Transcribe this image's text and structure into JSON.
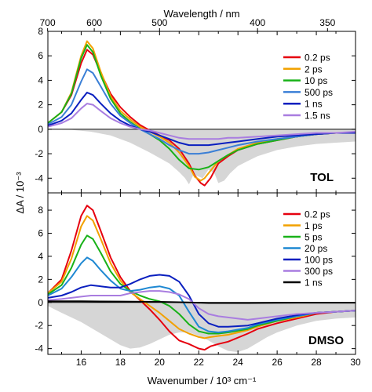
{
  "chart_data": {
    "type": "line",
    "top_axis": {
      "label": "Wavelength / nm",
      "ticks": [
        {
          "label": "700",
          "wavenumber": 14.286
        },
        {
          "label": "600",
          "wavenumber": 16.667
        },
        {
          "label": "500",
          "wavenumber": 20.0
        },
        {
          "label": "400",
          "wavenumber": 25.0
        },
        {
          "label": "350",
          "wavenumber": 28.571
        }
      ]
    },
    "xlabel": "Wavenumber / 10³ cm⁻¹",
    "ylabel": "ΔA / 10⁻³",
    "xlim": [
      14.3,
      30
    ],
    "xticks": [
      "16",
      "18",
      "20",
      "22",
      "24",
      "26",
      "28",
      "30"
    ],
    "panels": [
      {
        "label": "TOL",
        "ylim": [
          -5.2,
          8
        ],
        "yticks": [
          "8",
          "6",
          "4",
          "2",
          "0",
          "-2",
          "-4"
        ],
        "legend_position": "top-right",
        "series": [
          {
            "name": "0.2 ps",
            "color": "#e6000e",
            "x": [
              14.3,
              15.0,
              15.5,
              16.0,
              16.3,
              16.6,
              17.0,
              17.5,
              18.0,
              18.5,
              19.0,
              19.5,
              20.0,
              20.5,
              21.0,
              21.5,
              21.8,
              22.1,
              22.3,
              22.6,
              23.0,
              23.5,
              24.0,
              25.0,
              26.0,
              27.0,
              28.0,
              29.0,
              30.0
            ],
            "y": [
              0.5,
              1.4,
              2.8,
              5.4,
              6.5,
              6.1,
              4.6,
              2.9,
              1.8,
              1.0,
              0.35,
              -0.1,
              -0.5,
              -0.9,
              -1.6,
              -2.8,
              -3.8,
              -4.4,
              -4.6,
              -4.0,
              -2.8,
              -2.2,
              -1.7,
              -1.2,
              -0.9,
              -0.6,
              -0.4,
              -0.3,
              -0.3
            ]
          },
          {
            "name": "2 ps",
            "color": "#f2a100",
            "x": [
              14.3,
              15.0,
              15.5,
              16.0,
              16.3,
              16.6,
              17.0,
              17.5,
              18.0,
              18.5,
              19.0,
              19.5,
              20.0,
              20.5,
              21.0,
              21.5,
              21.8,
              22.1,
              22.3,
              22.6,
              23.0,
              23.5,
              24.0,
              25.0,
              26.0,
              27.0,
              28.0,
              29.0,
              30.0
            ],
            "y": [
              0.5,
              1.4,
              3.0,
              6.0,
              7.2,
              6.6,
              4.7,
              2.7,
              1.5,
              0.8,
              0.2,
              -0.2,
              -0.6,
              -1.1,
              -1.9,
              -3.0,
              -3.9,
              -4.2,
              -4.0,
              -3.4,
              -2.6,
              -2.1,
              -1.6,
              -1.1,
              -0.8,
              -0.6,
              -0.4,
              -0.3,
              -0.3
            ]
          },
          {
            "name": "10 ps",
            "color": "#19b219",
            "x": [
              14.3,
              15.0,
              15.5,
              16.0,
              16.3,
              16.6,
              17.0,
              17.5,
              18.0,
              18.5,
              19.0,
              19.5,
              20.0,
              20.5,
              21.0,
              21.5,
              22.0,
              22.5,
              23.0,
              23.5,
              24.0,
              25.0,
              26.0,
              27.0,
              28.0,
              29.0,
              30.0
            ],
            "y": [
              0.5,
              1.4,
              2.9,
              5.8,
              6.9,
              6.3,
              4.4,
              2.5,
              1.3,
              0.6,
              0.05,
              -0.4,
              -0.9,
              -1.6,
              -2.5,
              -3.2,
              -3.3,
              -3.1,
              -2.6,
              -2.1,
              -1.7,
              -1.2,
              -0.9,
              -0.6,
              -0.4,
              -0.3,
              -0.3
            ]
          },
          {
            "name": "500 ps",
            "color": "#3a7fd6",
            "x": [
              14.3,
              15.0,
              15.5,
              16.0,
              16.3,
              16.6,
              17.0,
              17.5,
              18.0,
              18.5,
              19.0,
              19.5,
              20.0,
              20.5,
              21.0,
              21.5,
              22.0,
              22.5,
              23.0,
              23.5,
              24.0,
              25.0,
              26.0,
              27.0,
              28.0,
              29.0,
              30.0
            ],
            "y": [
              0.4,
              1.0,
              2.0,
              3.9,
              4.9,
              4.6,
              3.5,
              2.1,
              1.1,
              0.5,
              0.0,
              -0.4,
              -0.8,
              -1.3,
              -1.7,
              -2.0,
              -2.0,
              -1.9,
              -1.7,
              -1.5,
              -1.3,
              -1.0,
              -0.8,
              -0.6,
              -0.4,
              -0.3,
              -0.3
            ]
          },
          {
            "name": "1 ns",
            "color": "#0a1fbf",
            "x": [
              14.3,
              15.0,
              15.5,
              16.0,
              16.3,
              16.6,
              17.0,
              17.5,
              18.0,
              18.5,
              19.0,
              19.5,
              20.0,
              20.5,
              21.0,
              21.5,
              22.0,
              22.5,
              23.0,
              23.5,
              24.0,
              25.0,
              26.0,
              27.0,
              28.0,
              29.0,
              30.0
            ],
            "y": [
              0.3,
              0.7,
              1.3,
              2.4,
              3.0,
              2.8,
              2.1,
              1.3,
              0.7,
              0.3,
              0.0,
              -0.2,
              -0.5,
              -0.8,
              -1.1,
              -1.3,
              -1.3,
              -1.3,
              -1.2,
              -1.1,
              -1.0,
              -0.8,
              -0.6,
              -0.5,
              -0.4,
              -0.3,
              -0.3
            ]
          },
          {
            "name": "1.5 ns",
            "color": "#a97de0",
            "x": [
              14.3,
              15.0,
              15.5,
              16.0,
              16.3,
              16.6,
              17.0,
              17.5,
              18.0,
              18.5,
              19.0,
              19.5,
              20.0,
              20.5,
              21.0,
              21.5,
              22.0,
              22.5,
              23.0,
              23.5,
              24.0,
              25.0,
              26.0,
              27.0,
              28.0,
              29.0,
              30.0
            ],
            "y": [
              0.2,
              0.5,
              0.9,
              1.7,
              2.1,
              2.0,
              1.5,
              0.9,
              0.5,
              0.2,
              0.0,
              -0.1,
              -0.3,
              -0.5,
              -0.7,
              -0.8,
              -0.8,
              -0.8,
              -0.8,
              -0.7,
              -0.7,
              -0.6,
              -0.5,
              -0.4,
              -0.3,
              -0.3,
              -0.2
            ]
          }
        ],
        "ground_state_bleach": {
          "color": "#d6d6d6",
          "x": [
            14.3,
            15.5,
            16.5,
            17.5,
            18.5,
            19.5,
            20.5,
            21.0,
            21.3,
            21.5,
            21.7,
            21.9,
            22.2,
            22.5,
            22.8,
            23.0,
            23.3,
            23.6,
            24.0,
            24.5,
            25.0,
            26.0,
            27.0,
            28.0,
            29.0,
            30.0
          ],
          "y": [
            0,
            -0.05,
            -0.2,
            -0.5,
            -1.1,
            -1.9,
            -2.8,
            -3.5,
            -4.0,
            -4.5,
            -3.8,
            -3.8,
            -4.0,
            -3.3,
            -3.6,
            -4.4,
            -4.2,
            -3.6,
            -3.0,
            -2.6,
            -2.2,
            -1.7,
            -1.4,
            -1.2,
            -1.1,
            -1.0
          ]
        }
      },
      {
        "label": "DMSO",
        "ylim": [
          -4.5,
          9.5
        ],
        "yticks": [
          "8",
          "6",
          "4",
          "2",
          "0",
          "-2",
          "-4"
        ],
        "legend_position": "top-right",
        "series": [
          {
            "name": "0.2 ps",
            "color": "#e6000e",
            "x": [
              14.3,
              15.0,
              15.5,
              16.0,
              16.3,
              16.6,
              17.0,
              17.5,
              18.0,
              18.5,
              19.0,
              19.5,
              20.0,
              20.5,
              21.0,
              21.5,
              22.0,
              22.3,
              22.6,
              23.0,
              23.5,
              24.5,
              25.0,
              26.0,
              27.0,
              28.0,
              29.0,
              30.0
            ],
            "y": [
              0.8,
              2.0,
              4.5,
              7.5,
              8.4,
              8.0,
              6.2,
              3.9,
              2.2,
              1.0,
              0.2,
              -0.6,
              -1.5,
              -2.5,
              -3.3,
              -3.6,
              -4.0,
              -4.1,
              -3.8,
              -3.6,
              -3.4,
              -2.7,
              -2.3,
              -1.8,
              -1.4,
              -1.0,
              -0.8,
              -0.7
            ]
          },
          {
            "name": "1 ps",
            "color": "#f2a100",
            "x": [
              14.3,
              15.0,
              15.5,
              16.0,
              16.3,
              16.6,
              17.0,
              17.5,
              18.0,
              18.5,
              19.0,
              19.5,
              20.0,
              20.5,
              21.0,
              21.5,
              22.0,
              22.3,
              22.6,
              23.0,
              23.5,
              24.5,
              25.0,
              26.0,
              27.0,
              28.0,
              29.0,
              30.0
            ],
            "y": [
              0.8,
              1.8,
              3.8,
              6.6,
              7.5,
              7.1,
              5.5,
              3.4,
              1.9,
              0.9,
              0.3,
              -0.3,
              -0.9,
              -1.6,
              -2.3,
              -2.7,
              -3.0,
              -3.1,
              -3.0,
              -2.9,
              -2.8,
              -2.4,
              -2.1,
              -1.6,
              -1.3,
              -0.9,
              -0.8,
              -0.7
            ]
          },
          {
            "name": "5 ps",
            "color": "#19b219",
            "x": [
              14.3,
              15.0,
              15.5,
              16.0,
              16.3,
              16.6,
              17.0,
              17.5,
              18.0,
              18.5,
              19.0,
              19.5,
              20.0,
              20.5,
              21.0,
              21.5,
              22.0,
              22.5,
              23.0,
              23.5,
              24.5,
              25.0,
              26.0,
              27.0,
              28.0,
              29.0,
              30.0
            ],
            "y": [
              0.7,
              1.5,
              3.0,
              5.0,
              5.8,
              5.5,
              4.3,
              2.7,
              1.6,
              1.0,
              0.6,
              0.3,
              0.1,
              -0.3,
              -1.0,
              -1.9,
              -2.5,
              -2.7,
              -2.7,
              -2.6,
              -2.3,
              -2.0,
              -1.6,
              -1.2,
              -0.9,
              -0.8,
              -0.7
            ]
          },
          {
            "name": "20 ps",
            "color": "#1e88d2",
            "x": [
              14.3,
              15.0,
              15.5,
              16.0,
              16.3,
              16.6,
              17.0,
              17.5,
              18.0,
              18.5,
              19.0,
              19.5,
              20.0,
              20.5,
              21.0,
              21.5,
              22.0,
              22.5,
              23.0,
              23.5,
              24.5,
              25.0,
              26.0,
              27.0,
              28.0,
              29.0,
              30.0
            ],
            "y": [
              0.6,
              1.2,
              2.2,
              3.4,
              3.9,
              3.6,
              2.8,
              1.9,
              1.2,
              1.0,
              1.1,
              1.3,
              1.4,
              1.2,
              0.6,
              -0.8,
              -2.1,
              -2.5,
              -2.6,
              -2.5,
              -2.2,
              -1.9,
              -1.5,
              -1.2,
              -0.9,
              -0.8,
              -0.7
            ]
          },
          {
            "name": "100 ps",
            "color": "#0a1fbf",
            "x": [
              14.3,
              15.0,
              15.5,
              16.0,
              16.5,
              17.0,
              17.5,
              18.0,
              18.5,
              19.0,
              19.5,
              20.0,
              20.5,
              21.0,
              21.5,
              22.0,
              22.5,
              23.0,
              23.5,
              24.5,
              25.0,
              26.0,
              27.0,
              28.0,
              29.0,
              30.0
            ],
            "y": [
              0.4,
              0.6,
              0.9,
              1.3,
              1.5,
              1.4,
              1.3,
              1.3,
              1.6,
              2.0,
              2.3,
              2.4,
              2.3,
              1.8,
              0.6,
              -1.0,
              -1.8,
              -2.1,
              -2.1,
              -2.0,
              -1.8,
              -1.4,
              -1.1,
              -0.9,
              -0.8,
              -0.7
            ]
          },
          {
            "name": "300 ps",
            "color": "#a97de0",
            "x": [
              14.3,
              15.0,
              15.5,
              16.0,
              16.5,
              17.0,
              17.5,
              18.0,
              18.5,
              19.0,
              19.5,
              20.0,
              20.5,
              21.0,
              21.5,
              22.0,
              22.5,
              23.0,
              23.5,
              24.5,
              25.0,
              26.0,
              27.0,
              28.0,
              29.0,
              30.0
            ],
            "y": [
              0.2,
              0.3,
              0.4,
              0.5,
              0.6,
              0.6,
              0.6,
              0.6,
              0.8,
              0.9,
              1.0,
              1.0,
              0.9,
              0.7,
              0.3,
              -0.5,
              -1.0,
              -1.2,
              -1.3,
              -1.5,
              -1.4,
              -1.2,
              -1.0,
              -0.9,
              -0.8,
              -0.7
            ]
          },
          {
            "name": "1 ns",
            "color": "#000000",
            "x": [
              14.3,
              16.0,
              18.0,
              20.0,
              21.5,
              22.5,
              23.5,
              24.5,
              26.0,
              28.0,
              30.0
            ],
            "y": [
              0.1,
              0.1,
              0.08,
              0.05,
              0.0,
              -0.05,
              -0.05,
              -0.05,
              -0.03,
              -0.02,
              -0.02
            ]
          }
        ],
        "ground_state_bleach": {
          "color": "#d6d6d6",
          "x": [
            14.3,
            15.0,
            16.0,
            17.0,
            18.0,
            18.5,
            19.0,
            19.5,
            20.0,
            20.5,
            21.0,
            21.5,
            22.0,
            22.5,
            23.0,
            23.5,
            24.0,
            24.5,
            25.0,
            25.5,
            26.0,
            27.0,
            28.0,
            29.0,
            30.0
          ],
          "y": [
            -0.3,
            -0.9,
            -1.7,
            -2.7,
            -3.7,
            -4.0,
            -3.9,
            -3.6,
            -3.2,
            -2.8,
            -2.6,
            -2.6,
            -2.9,
            -3.3,
            -3.8,
            -4.2,
            -4.3,
            -4.0,
            -3.5,
            -3.0,
            -2.6,
            -2.0,
            -1.6,
            -1.4,
            -1.3
          ]
        }
      }
    ]
  }
}
